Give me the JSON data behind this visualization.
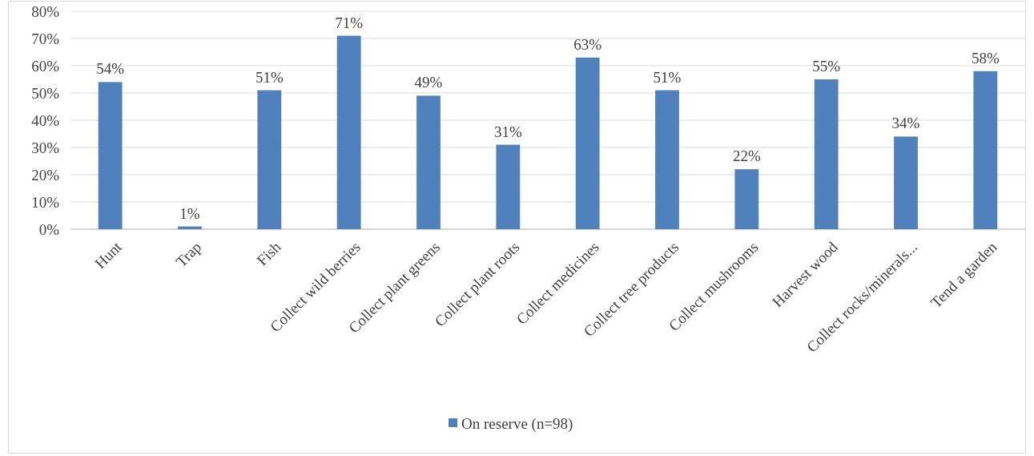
{
  "chart_data": {
    "type": "bar",
    "categories": [
      "Hunt",
      "Trap",
      "Fish",
      "Collect wild berries",
      "Collect plant greens",
      "Collect plant roots",
      "Collect medicines",
      "Collect tree products",
      "Collect mushrooms",
      "Harvest wood",
      "Collect rocks/minerals...",
      "Tend a garden"
    ],
    "series": [
      {
        "name": "On reserve (n=98)",
        "color": "#4f81bd",
        "values": [
          54,
          1,
          51,
          71,
          49,
          31,
          63,
          51,
          22,
          55,
          34,
          58
        ]
      }
    ],
    "value_labels": [
      "54%",
      "1%",
      "51%",
      "71%",
      "49%",
      "31%",
      "63%",
      "51%",
      "22%",
      "55%",
      "34%",
      "58%"
    ],
    "ylim": [
      0,
      80
    ],
    "yticks": [
      {
        "value": 0,
        "label": "0%"
      },
      {
        "value": 10,
        "label": "10%"
      },
      {
        "value": 20,
        "label": "20%"
      },
      {
        "value": 30,
        "label": "30%"
      },
      {
        "value": 40,
        "label": "40%"
      },
      {
        "value": 50,
        "label": "50%"
      },
      {
        "value": 60,
        "label": "60%"
      },
      {
        "value": 70,
        "label": "70%"
      },
      {
        "value": 80,
        "label": "80%"
      }
    ],
    "grid": "y",
    "legend": "bottom"
  }
}
